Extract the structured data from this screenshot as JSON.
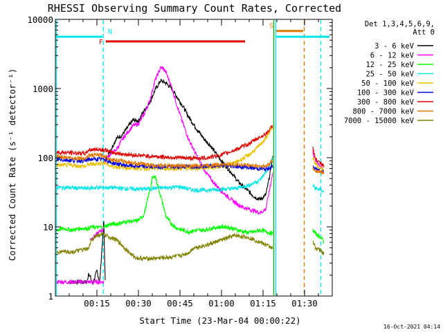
{
  "chart_data": {
    "type": "line",
    "title": "RHESSI Observing Summary Count Rates, Corrected",
    "xlabel": "Start Time (23-Mar-04 00:00:22)",
    "ylabel": "Corrected Count Rate (s⁻¹ detector⁻¹)",
    "y_scale": "log",
    "ylim": [
      1,
      10000
    ],
    "xlim_minutes": [
      0,
      100
    ],
    "x_ticks": [
      {
        "label": "00:15",
        "minute": 15
      },
      {
        "label": "00:30",
        "minute": 30
      },
      {
        "label": "00:45",
        "minute": 45
      },
      {
        "label": "01:00",
        "minute": 60
      },
      {
        "label": "01:15",
        "minute": 75
      },
      {
        "label": "01:30",
        "minute": 90
      }
    ],
    "y_ticks": [
      {
        "label": "1",
        "value": 1
      },
      {
        "label": "10",
        "value": 10
      },
      {
        "label": "100",
        "value": 100
      },
      {
        "label": "1000",
        "value": 1000
      },
      {
        "label": "10000",
        "value": 10000
      }
    ],
    "legend_title": [
      "Det 1,3,4,5,6,9,",
      "Att 0"
    ],
    "legend_position": "top-right, outside plot",
    "timestamp": "16-Oct-2021 04:14",
    "flags": [
      {
        "label": "N",
        "color": "#00e5e5",
        "y": 5600,
        "x_start": 0,
        "x_end": 17.0
      },
      {
        "label": "F",
        "color": "#e00000",
        "y": 4800,
        "x_start": 18.2,
        "x_end": 68.5
      },
      {
        "label": "S",
        "color": "#e07800",
        "y": 6800,
        "x_start": 79.8,
        "x_end": 89.5
      },
      {
        "label": "",
        "color": "#00e5e5",
        "y": 5600,
        "x_start": 79.8,
        "x_end": 99.0
      }
    ],
    "vlines": [
      {
        "x": 0.4,
        "color": "#00e5e5",
        "style": "solid"
      },
      {
        "x": 17.3,
        "color": "#00e5e5",
        "style": "dashed"
      },
      {
        "x": 78.9,
        "color": "#00b000",
        "style": "solid"
      },
      {
        "x": 79.6,
        "color": "#00e5e5",
        "style": "solid"
      },
      {
        "x": 89.9,
        "color": "#e07800",
        "style": "dashed"
      },
      {
        "x": 95.9,
        "color": "#00e5e5",
        "style": "dashed"
      }
    ],
    "series": [
      {
        "name": "3 - 6 keV",
        "color": "#000000",
        "segments": [
          {
            "x": [
              5.2,
              11.5,
              12.0,
              13.5,
              15.0,
              16.0,
              17.5,
              18.0
            ],
            "y": [
              1.6,
              1.6,
              2.2,
              1.5,
              2.3,
              1.6,
              12,
              1.6
            ]
          },
          {
            "x": [
              17.5,
              20,
              22,
              24,
              26,
              28,
              30,
              32,
              34,
              36,
              38,
              40,
              42,
              44,
              46,
              48,
              50,
              52,
              54,
              56,
              58,
              60,
              62,
              64,
              66,
              68,
              70,
              72,
              74,
              76,
              77,
              78.5
            ],
            "y": [
              85,
              130,
              190,
              210,
              270,
              350,
              340,
              480,
              620,
              950,
              1300,
              1200,
              1000,
              750,
              560,
              400,
              300,
              230,
              180,
              150,
              115,
              90,
              72,
              58,
              45,
              38,
              32,
              27,
              25,
              29,
              45,
              100
            ]
          }
        ]
      },
      {
        "name": "6 - 12 keV",
        "color": "#ff00ff",
        "segments": [
          {
            "x": [
              0.5,
              17.5
            ],
            "y": [
              1.6,
              1.6
            ]
          },
          {
            "x": [
              12.5,
              17.5
            ],
            "y": [
              6.5,
              9.5
            ]
          },
          {
            "x": [
              17.5,
              20,
              22,
              24,
              26,
              28,
              30,
              32,
              34,
              36,
              38,
              39,
              40,
              42,
              44,
              46,
              48,
              50,
              52,
              54,
              56,
              58,
              60,
              62,
              64,
              66,
              68,
              70,
              72,
              74,
              76,
              78.5
            ],
            "y": [
              85,
              115,
              130,
              180,
              230,
              290,
              310,
              420,
              650,
              1300,
              2000,
              1950,
              1700,
              1050,
              560,
              320,
              190,
              130,
              90,
              65,
              50,
              40,
              33,
              28,
              24,
              21,
              19,
              18,
              17,
              16,
              18,
              60
            ]
          },
          {
            "x": [
              93,
              94,
              96,
              97
            ],
            "y": [
              120,
              90,
              75,
              60
            ]
          }
        ]
      },
      {
        "name": "12 - 25 keV",
        "color": "#00ff00",
        "segments": [
          {
            "x": [
              0.5,
              3,
              6,
              9,
              12,
              13,
              15,
              17
            ],
            "y": [
              9,
              9.5,
              9,
              9.5,
              9.5,
              10,
              9.8,
              10
            ]
          },
          {
            "x": [
              17.5,
              20,
              22,
              24,
              26,
              28,
              30,
              32,
              34,
              35,
              36,
              37,
              38,
              39,
              40,
              42,
              44,
              46,
              48,
              50,
              52,
              54,
              56,
              58,
              60,
              62,
              64,
              66,
              68,
              70,
              72,
              74,
              76,
              78.5
            ],
            "y": [
              10,
              11,
              11,
              11.5,
              12,
              12,
              12.5,
              15,
              32,
              50,
              55,
              40,
              28,
              20,
              14,
              11,
              9.5,
              9,
              8.5,
              8.8,
              9,
              9,
              9.5,
              9.8,
              10,
              10,
              9.5,
              9,
              8.5,
              8.3,
              8.5,
              9,
              8.5,
              8
            ]
          },
          {
            "x": [
              93,
              94,
              96,
              97
            ],
            "y": [
              9,
              8,
              7,
              6
            ]
          }
        ]
      },
      {
        "name": "25 - 50 keV",
        "color": "#00e5e5",
        "segments": [
          {
            "x": [
              0.5,
              5,
              10,
              15,
              20,
              25,
              30,
              35,
              40,
              45,
              50,
              55,
              60,
              65,
              70,
              74,
              77,
              78.5
            ],
            "y": [
              37,
              37,
              36,
              37,
              37,
              36,
              35,
              36,
              37,
              38,
              34,
              34,
              35,
              36,
              40,
              48,
              70,
              100
            ]
          },
          {
            "x": [
              93,
              94,
              96,
              97
            ],
            "y": [
              40,
              36,
              34,
              32
            ]
          }
        ]
      },
      {
        "name": "50 - 100 keV",
        "color": "#e8c000",
        "segments": [
          {
            "x": [
              0.5,
              5,
              11,
              12,
              15,
              18,
              20,
              25,
              30,
              35,
              40,
              45,
              50,
              55,
              60,
              65,
              70,
              73,
              76,
              78.5
            ],
            "y": [
              78,
              78,
              75,
              80,
              82,
              84,
              75,
              72,
              70,
              70,
              70,
              70,
              70,
              72,
              75,
              85,
              110,
              140,
              190,
              280
            ]
          },
          {
            "x": [
              93,
              94,
              96,
              97
            ],
            "y": [
              100,
              80,
              70,
              65
            ]
          }
        ]
      },
      {
        "name": "100 - 300 keV",
        "color": "#0000e0",
        "segments": [
          {
            "x": [
              0.5,
              5,
              11,
              12,
              15,
              18,
              20,
              25,
              30,
              35,
              40,
              45,
              50,
              55,
              60,
              65,
              70,
              73,
              76,
              78.5
            ],
            "y": [
              95,
              92,
              90,
              95,
              95,
              95,
              85,
              78,
              75,
              74,
              74,
              74,
              75,
              76,
              77,
              75,
              72,
              70,
              68,
              75
            ]
          },
          {
            "x": [
              93,
              94,
              96,
              97
            ],
            "y": [
              75,
              68,
              65,
              62
            ]
          }
        ]
      },
      {
        "name": "300 - 800 keV",
        "color": "#e00000",
        "segments": [
          {
            "x": [
              0.5,
              5,
              11,
              12,
              15,
              18,
              20,
              25,
              30,
              35,
              40,
              45,
              50,
              55,
              60,
              65,
              70,
              73,
              76,
              78.5
            ],
            "y": [
              120,
              118,
              115,
              130,
              132,
              130,
              120,
              112,
              108,
              105,
              102,
              100,
              98,
              100,
              110,
              130,
              160,
              190,
              220,
              290
            ]
          },
          {
            "x": [
              93,
              94,
              96,
              97
            ],
            "y": [
              140,
              95,
              80,
              75
            ]
          }
        ]
      },
      {
        "name": "800 - 7000 keV",
        "color": "#e07800",
        "segments": [
          {
            "x": [
              0.5,
              5,
              11,
              12,
              15,
              18,
              20,
              25,
              30,
              35,
              40,
              45,
              50,
              55,
              60,
              65,
              70,
              73,
              76,
              78.5
            ],
            "y": [
              105,
              100,
              98,
              108,
              110,
              105,
              95,
              88,
              82,
              78,
              77,
              76,
              76,
              78,
              80,
              80,
              78,
              76,
              75,
              90
            ]
          },
          {
            "x": [
              93,
              94,
              96,
              97
            ],
            "y": [
              70,
              65,
              62,
              60
            ]
          }
        ]
      },
      {
        "name": "7000 - 15000 keV",
        "color": "#808000",
        "segments": [
          {
            "x": [
              0.5,
              3,
              6,
              9,
              12,
              13,
              15,
              17,
              20,
              22,
              24,
              26,
              28,
              30,
              35,
              40,
              45,
              48,
              50,
              55,
              60,
              65,
              70,
              74,
              76,
              78.5
            ],
            "y": [
              4.2,
              4.5,
              4.3,
              4.6,
              4.8,
              6.5,
              7.5,
              7.8,
              7,
              6.5,
              5.5,
              4.5,
              3.8,
              3.5,
              3.5,
              3.6,
              3.8,
              4.2,
              5,
              5.5,
              6.5,
              7.5,
              7,
              6,
              5.5,
              5
            ]
          },
          {
            "x": [
              93,
              94,
              96,
              97
            ],
            "y": [
              6,
              5,
              4.5,
              4
            ]
          }
        ]
      }
    ]
  }
}
